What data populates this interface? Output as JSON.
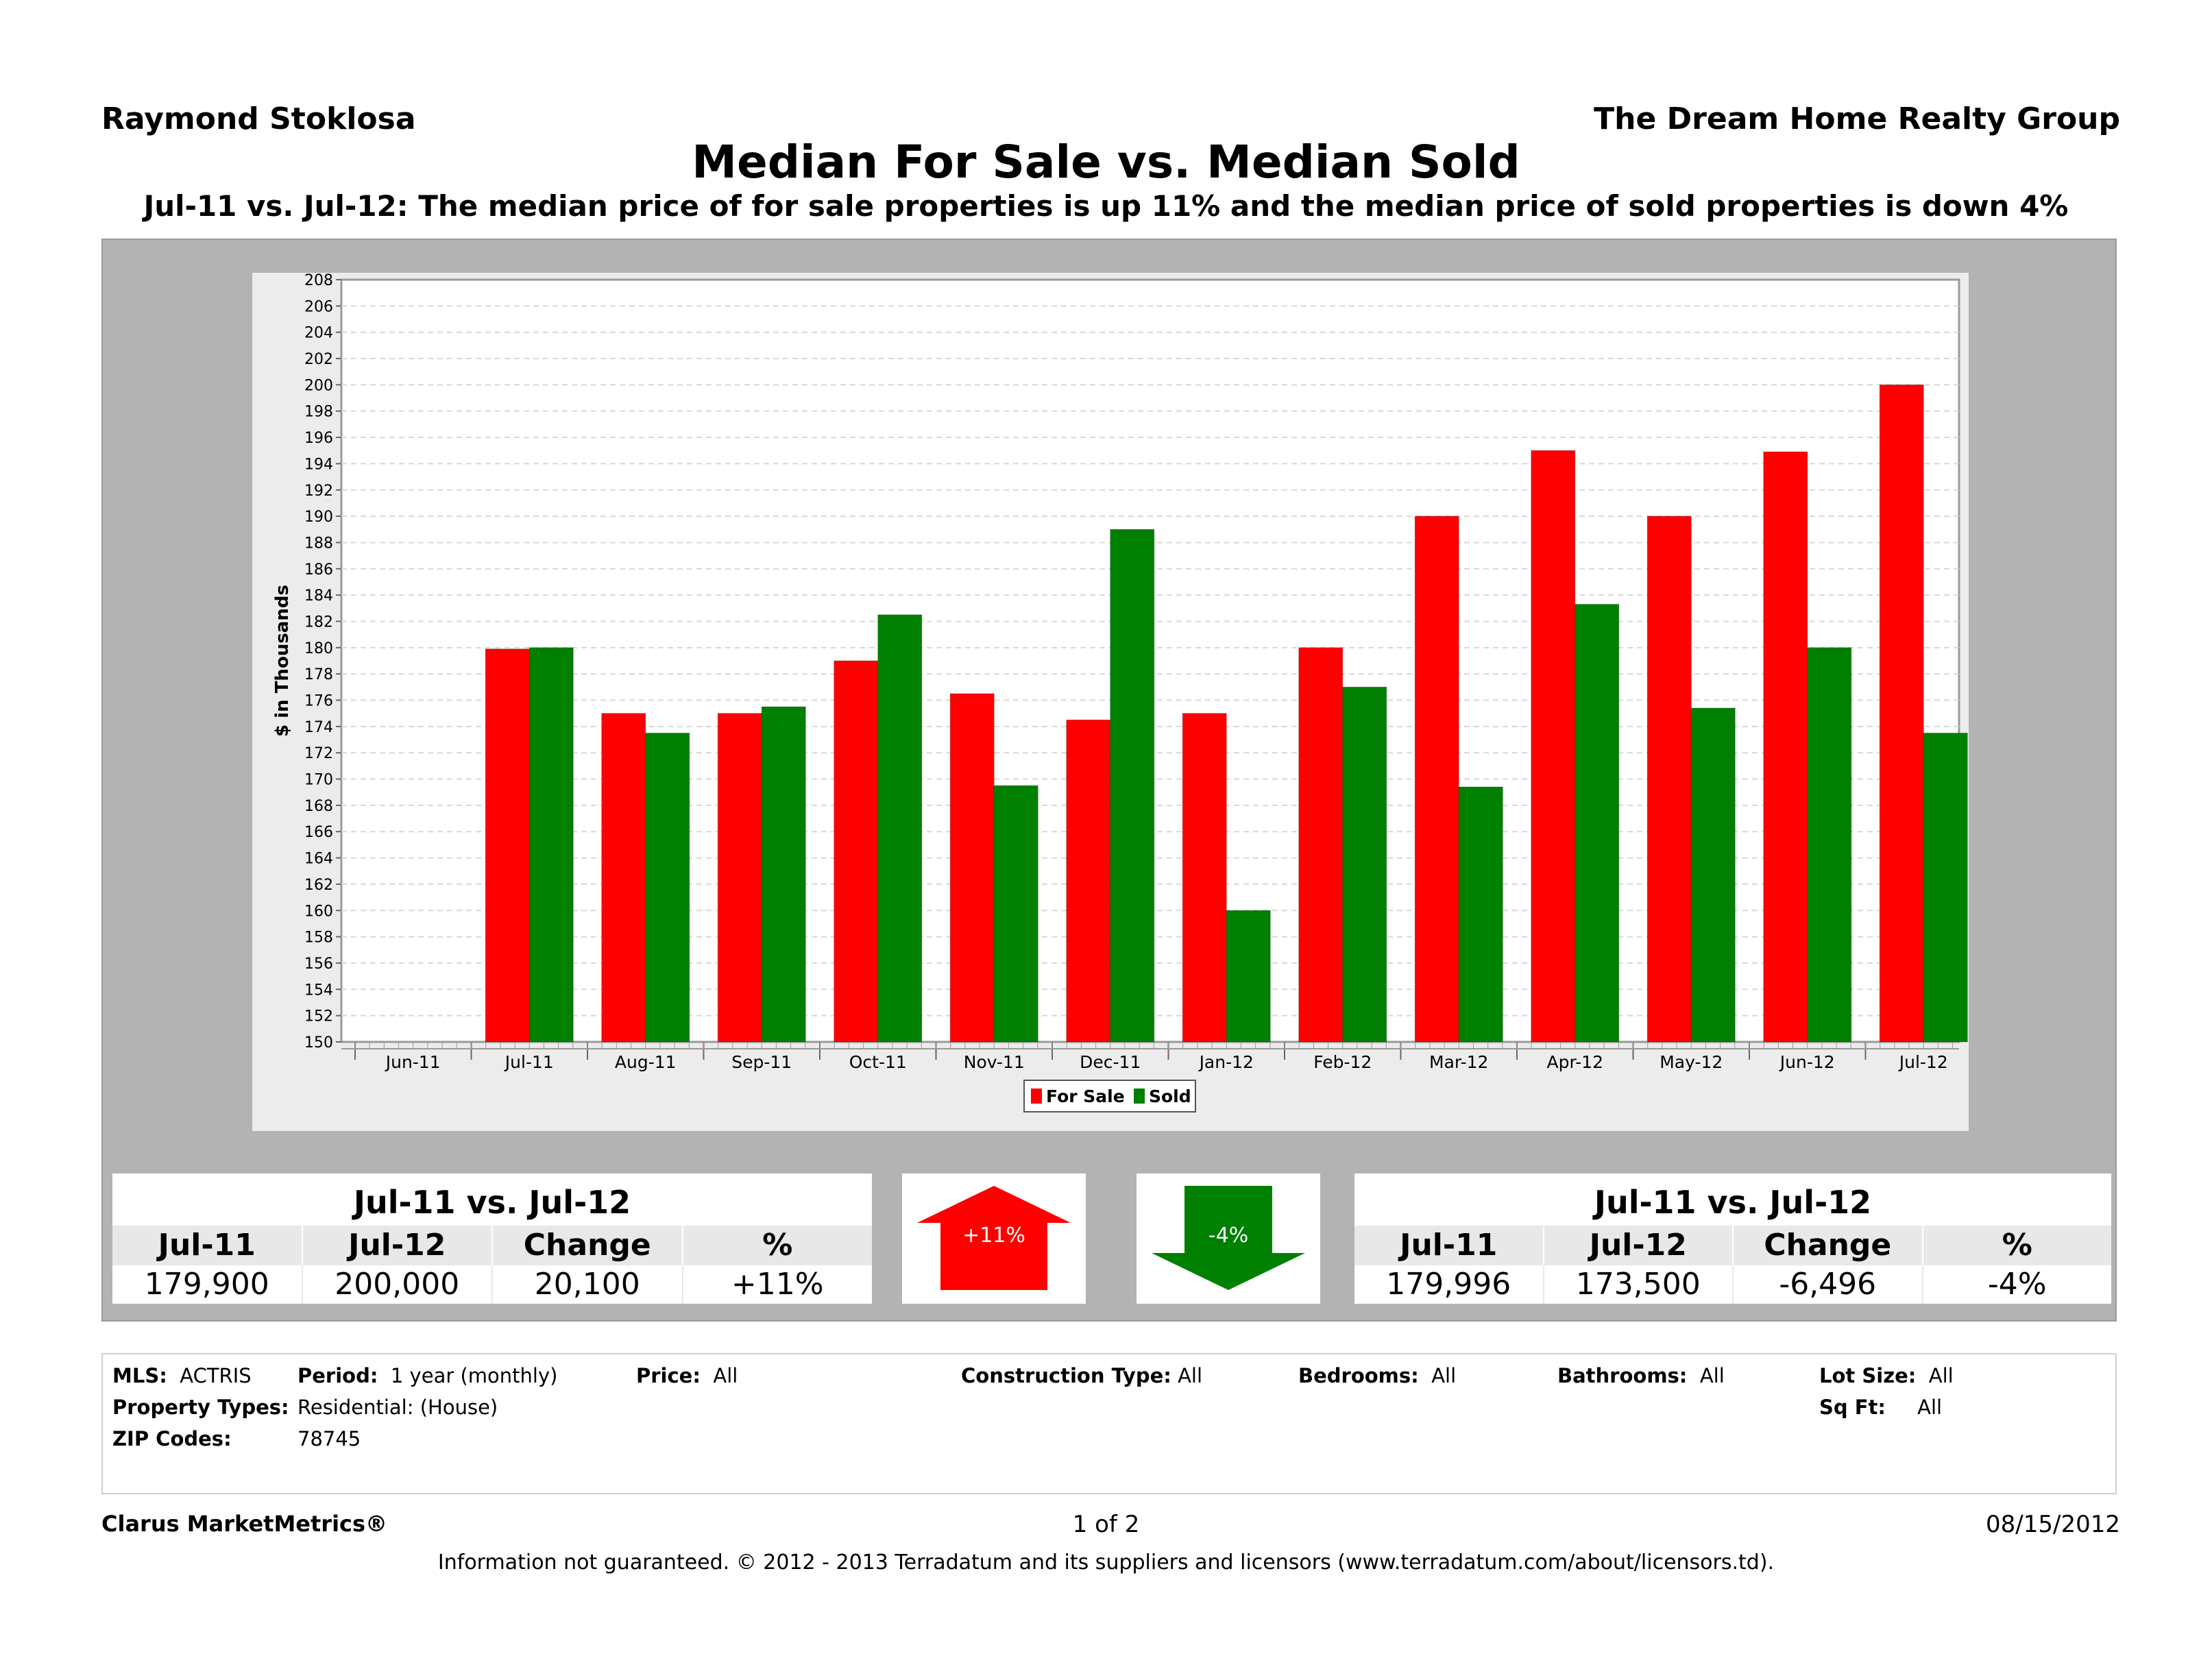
{
  "header": {
    "agent": "Raymond Stoklosa",
    "company": "The Dream Home Realty Group",
    "title": "Median For Sale vs. Median Sold",
    "subtitle": "Jul-11 vs. Jul-12:  The median price of for sale properties is up 11% and the median price of sold properties is down 4%"
  },
  "chart_data": {
    "type": "bar",
    "title": "",
    "xlabel": "",
    "ylabel": "$ in Thousands",
    "ylim": [
      150,
      208
    ],
    "ytick_step": 2,
    "categories": [
      "Jun-11",
      "Jul-11",
      "Aug-11",
      "Sep-11",
      "Oct-11",
      "Nov-11",
      "Dec-11",
      "Jan-12",
      "Feb-12",
      "Mar-12",
      "Apr-12",
      "May-12",
      "Jun-12",
      "Jul-12"
    ],
    "series": [
      {
        "name": "For Sale",
        "color": "#ff0000",
        "values": [
          null,
          179.9,
          175.0,
          175.0,
          179.0,
          176.5,
          174.5,
          175.0,
          180.0,
          190.0,
          195.0,
          190.0,
          194.9,
          200.0
        ]
      },
      {
        "name": "Sold",
        "color": "#008000",
        "values": [
          null,
          180.0,
          173.5,
          175.5,
          182.5,
          169.5,
          189.0,
          160.0,
          177.0,
          169.4,
          183.3,
          175.4,
          180.0,
          173.5
        ]
      }
    ],
    "legend_position": "bottom-center",
    "grid": true
  },
  "forsale_stats": {
    "title": "Jul-11 vs. Jul-12",
    "headers": [
      "Jul-11",
      "Jul-12",
      "Change",
      "%"
    ],
    "values": [
      "179,900",
      "200,000",
      "20,100",
      "+11%"
    ]
  },
  "sold_stats": {
    "title": "Jul-11 vs. Jul-12",
    "headers": [
      "Jul-11",
      "Jul-12",
      "Change",
      "%"
    ],
    "values": [
      "179,996",
      "173,500",
      "-6,496",
      "-4%"
    ]
  },
  "arrows": {
    "up_label": "+11%",
    "up_color": "#ff0000",
    "down_label": "-4%",
    "down_color": "#008000"
  },
  "filters": {
    "mls_label": "MLS:",
    "mls_value": "ACTRIS",
    "period_label": "Period:",
    "period_value": "1 year (monthly)",
    "price_label": "Price:",
    "price_value": "All",
    "construction_label": "Construction Type:",
    "construction_value": "All",
    "bedrooms_label": "Bedrooms:",
    "bedrooms_value": "All",
    "bathrooms_label": "Bathrooms:",
    "bathrooms_value": "All",
    "lotsize_label": "Lot Size:",
    "lotsize_value": "All",
    "proptypes_label": "Property Types:",
    "proptypes_value": "Residential: (House)",
    "sqft_label": "Sq Ft:",
    "sqft_value": "All",
    "zip_label": "ZIP Codes:",
    "zip_value": "78745"
  },
  "footer": {
    "brand": "Clarus MarketMetrics®",
    "page": "1 of 2",
    "date": "08/15/2012",
    "disclaimer": "Information not guaranteed.  © 2012 - 2013 Terradatum and its suppliers and licensors (www.terradatum.com/about/licensors.td)."
  }
}
